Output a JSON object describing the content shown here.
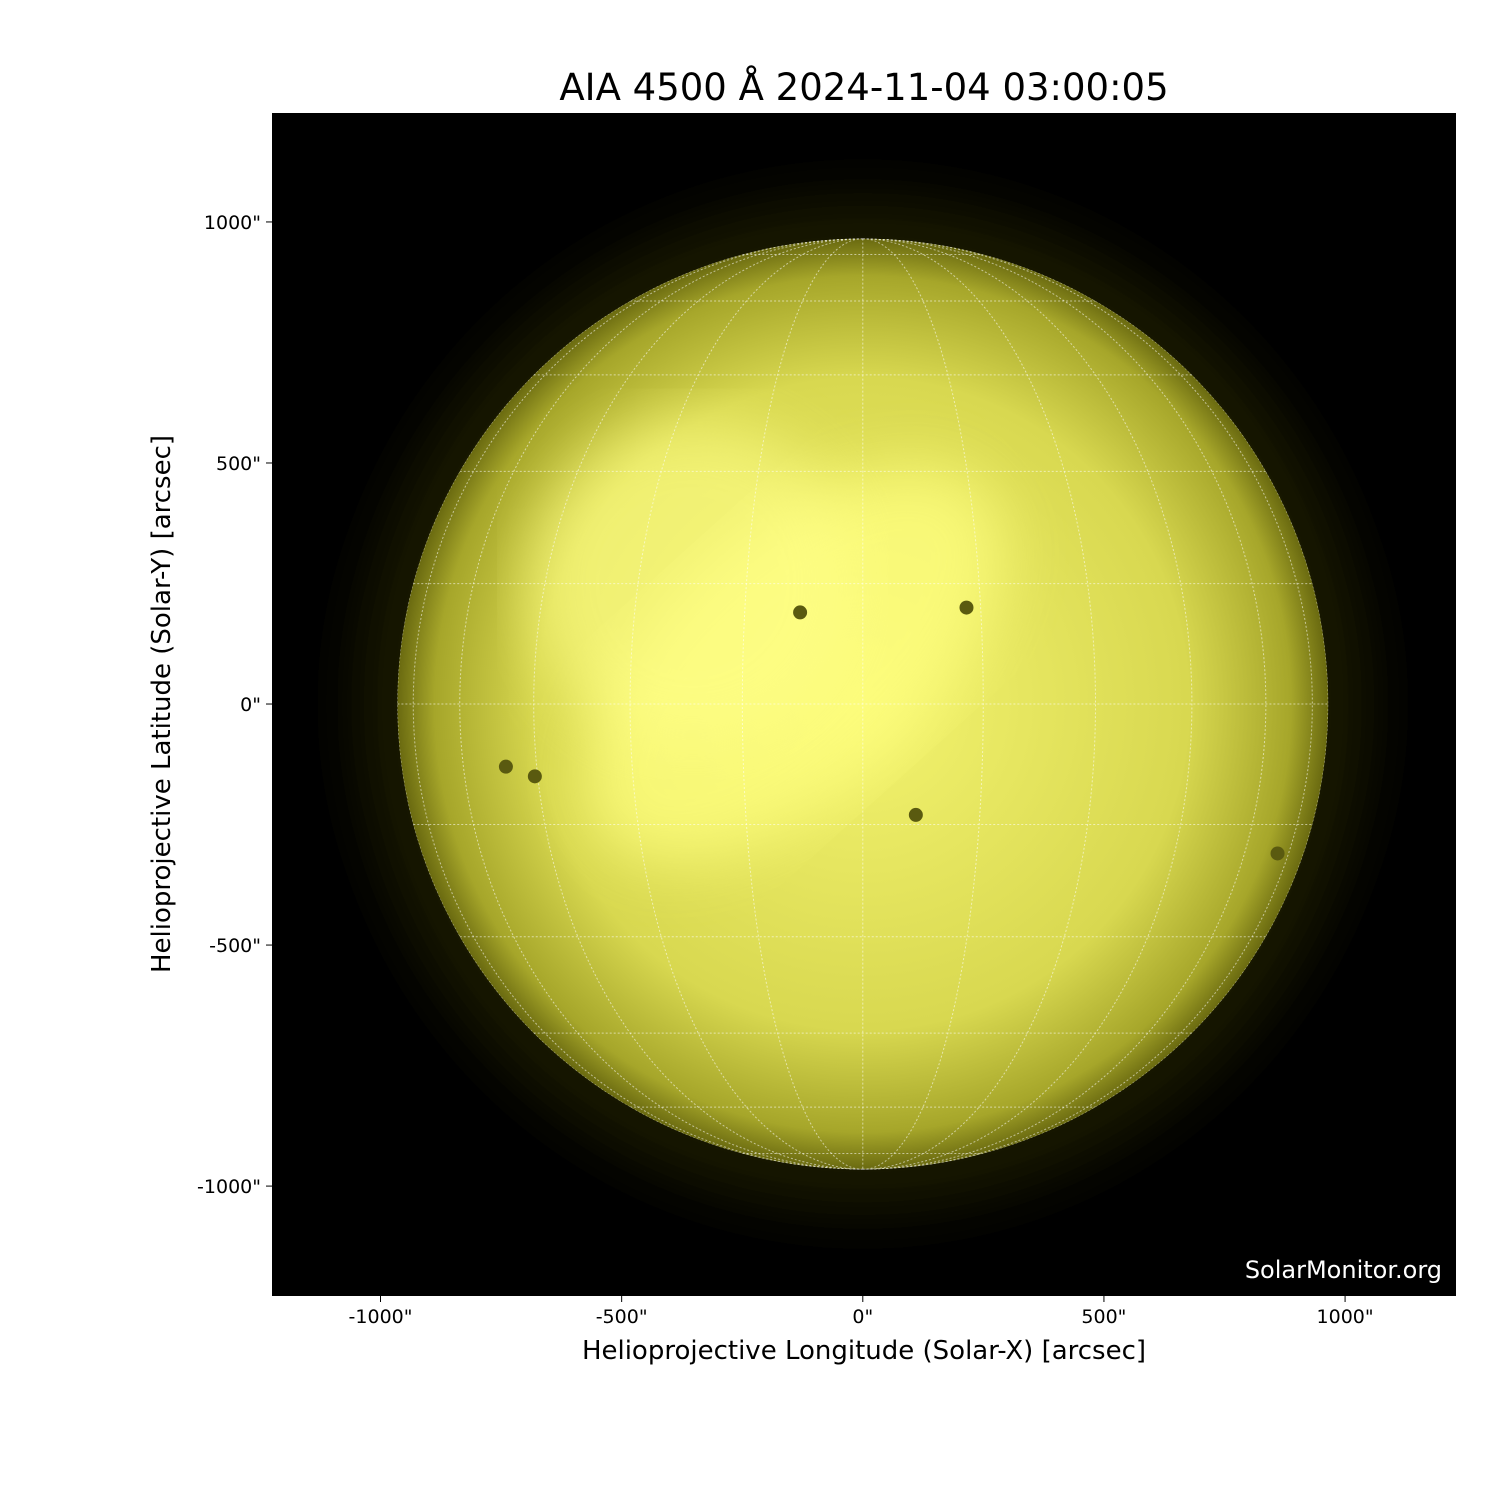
{
  "chart_data": {
    "type": "image",
    "title": "AIA 4500 Å 2024-11-04 03:00:05",
    "xlabel": "Helioprojective Longitude (Solar-X) [arcsec]",
    "ylabel": "Helioprojective Latitude (Solar-Y) [arcsec]",
    "xlim": [
      -1225,
      1230
    ],
    "ylim": [
      -1228,
      1226
    ],
    "xticks": [
      -1000,
      -500,
      0,
      500,
      1000
    ],
    "yticks": [
      -1000,
      -500,
      0,
      500,
      1000
    ],
    "xtick_labels": [
      "-1000\"",
      "-500\"",
      "0\"",
      "500\"",
      "1000\""
    ],
    "ytick_labels": [
      "-1000\"",
      "-500\"",
      "0\"",
      "500\"",
      "1000\""
    ],
    "solar_radius_arcsec": 965,
    "grid_spacing_deg": 15,
    "colormap": [
      "#000000",
      "#5a5a00",
      "#b4b400",
      "#ffff80"
    ],
    "sunspots": [
      {
        "x": -130,
        "y": 190
      },
      {
        "x": 215,
        "y": 200
      },
      {
        "x": 110,
        "y": -230
      },
      {
        "x": -680,
        "y": -150
      },
      {
        "x": -740,
        "y": -130
      },
      {
        "x": 860,
        "y": -310
      }
    ],
    "watermark": "SolarMonitor.org"
  }
}
